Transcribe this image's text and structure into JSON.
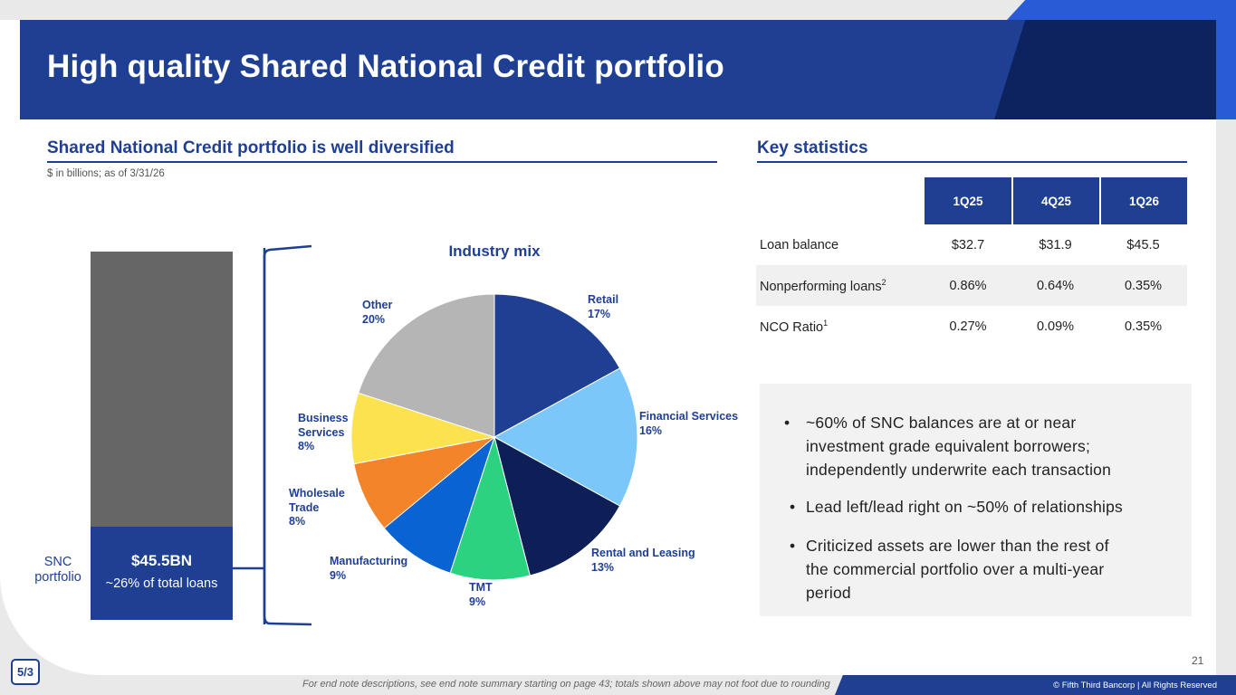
{
  "title": "High quality Shared National Credit portfolio",
  "left_section": {
    "heading": "Shared National Credit portfolio is well diversified",
    "subnote": "$ in billions; as of 3/31/26",
    "bar": {
      "value": "$45.5BN",
      "sub": "~26% of total loans",
      "label_line1": "SNC",
      "label_line2": "portfolio",
      "fraction": 0.26
    }
  },
  "chart_data": {
    "type": "pie",
    "title": "Industry mix",
    "slices": [
      {
        "name": "Retail",
        "pct_label": "17%",
        "value": 17,
        "color": "#1f3f93"
      },
      {
        "name": "Financial Services",
        "pct_label": "16%",
        "value": 16,
        "color": "#7cc7fa"
      },
      {
        "name": "Rental and Leasing",
        "pct_label": "13%",
        "value": 13,
        "color": "#0d1f56"
      },
      {
        "name": "TMT",
        "pct_label": "9%",
        "value": 9,
        "color": "#2bd27f"
      },
      {
        "name": "Manufacturing",
        "pct_label": "9%",
        "value": 9,
        "color": "#0a63d3"
      },
      {
        "name": "Wholesale Trade",
        "pct_label": "8%",
        "value": 8,
        "color": "#f4842a"
      },
      {
        "name": "Business Services",
        "pct_label": "8%",
        "value": 8,
        "color": "#fde24f"
      },
      {
        "name": "Other",
        "pct_label": "20%",
        "value": 20,
        "color": "#b5b5b5"
      }
    ]
  },
  "labels": {
    "retail": [
      "Retail",
      "17%"
    ],
    "financial": [
      "Financial Services",
      "16%"
    ],
    "rental": [
      "Rental and Leasing",
      "13%"
    ],
    "tmt": [
      "TMT",
      "9%"
    ],
    "manufacturing": [
      "Manufacturing",
      "9%"
    ],
    "wholesale": [
      "Wholesale",
      "Trade",
      "8%"
    ],
    "business": [
      "Business",
      "Services",
      "8%"
    ],
    "other": [
      "Other",
      "20%"
    ]
  },
  "right_section": {
    "heading": "Key statistics",
    "columns": [
      "1Q25",
      "4Q25",
      "1Q26"
    ],
    "rows": [
      {
        "label": "Loan balance",
        "sup": "",
        "values": [
          "$32.7",
          "$31.9",
          "$45.5"
        ]
      },
      {
        "label": "Nonperforming loans",
        "sup": "2",
        "values": [
          "0.86%",
          "0.64%",
          "0.35%"
        ]
      },
      {
        "label": "NCO Ratio",
        "sup": "1",
        "values": [
          "0.27%",
          "0.09%",
          "0.35%"
        ]
      }
    ],
    "bullets": [
      [
        "~60% of SNC balances are at or near",
        "investment grade equivalent borrowers;",
        "independently underwrite each transaction"
      ],
      [
        "Lead left/lead right on ~50% of relationships"
      ],
      [
        "Criticized assets are lower than the rest of",
        "the commercial portfolio over a multi-year",
        "period"
      ]
    ]
  },
  "footer": {
    "page_number": "21",
    "logo_text": "5/3",
    "footnote": "For end note descriptions, see end note summary starting on page 43; totals shown above may not foot due to rounding",
    "copyright": "© Fifth Third Bancorp | All Rights Reserved"
  }
}
